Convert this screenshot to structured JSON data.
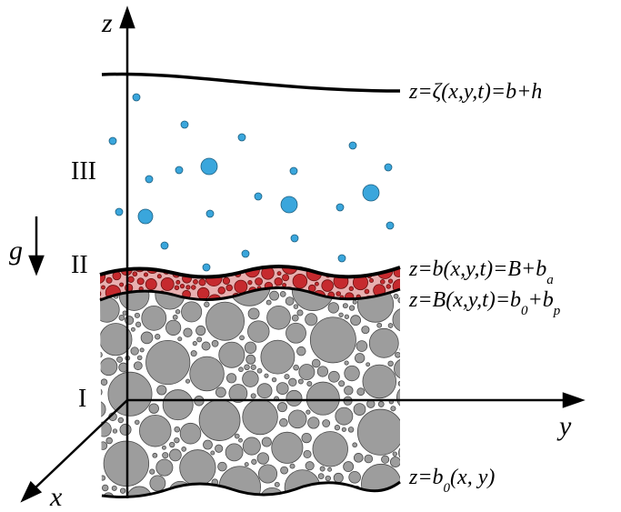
{
  "axes": {
    "z": "z",
    "y": "y",
    "x": "x"
  },
  "gravity": "g",
  "layers": [
    "III",
    "II",
    "I"
  ],
  "equations": [
    [
      {
        "text": "z=ζ(x,y,t)=b+h",
        "subscript": false
      }
    ],
    [
      {
        "text": "z=b(x,y,t)=B+b",
        "subscript": false
      },
      {
        "text": "a",
        "subscript": true
      }
    ],
    [
      {
        "text": "z=B(x,y,t)=b",
        "subscript": false
      },
      {
        "text": "0",
        "subscript": true
      },
      {
        "text": "+b",
        "subscript": false
      },
      {
        "text": "p",
        "subscript": true
      }
    ],
    [
      {
        "text": "z=b",
        "subscript": false
      },
      {
        "text": "0",
        "subscript": true
      },
      {
        "text": "(x, y)",
        "subscript": false
      }
    ]
  ]
}
